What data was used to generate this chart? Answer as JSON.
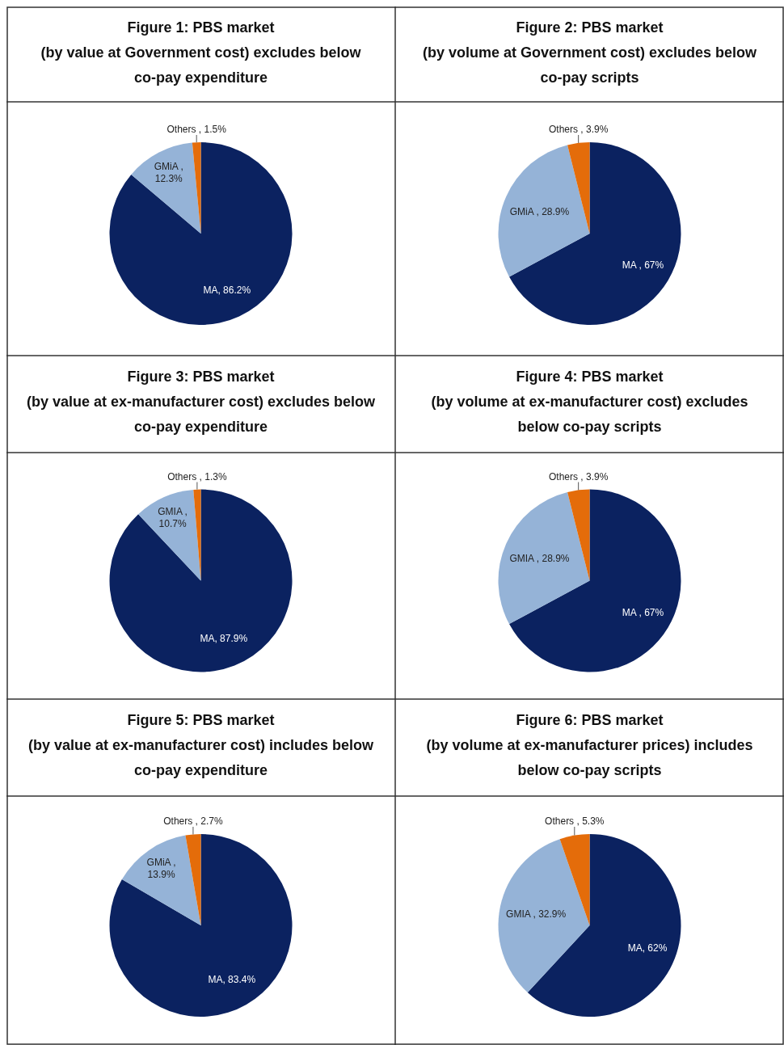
{
  "chart_data": [
    {
      "type": "pie",
      "title": "Figure 1: PBS market",
      "subtitle": "(by value at Government cost) excludes below co-pay expenditure",
      "categories": [
        "MA",
        "GMiA",
        "Others"
      ],
      "values": [
        86.2,
        12.3,
        1.5
      ],
      "colors": [
        "#0b2260",
        "#95b3d7",
        "#e46c0a"
      ],
      "value_labels": [
        ", 86.2%",
        " ,\n12.3%",
        " , 1.5%"
      ]
    },
    {
      "type": "pie",
      "title": "Figure 2: PBS market",
      "subtitle": "(by volume at Government cost) excludes below co-pay scripts",
      "categories": [
        "MA",
        "GMiA",
        "Others"
      ],
      "values": [
        67,
        28.9,
        3.9
      ],
      "colors": [
        "#0b2260",
        "#95b3d7",
        "#e46c0a"
      ],
      "value_labels": [
        " , 67%",
        " , 28.9%",
        " , 3.9%"
      ]
    },
    {
      "type": "pie",
      "title": "Figure 3: PBS market",
      "subtitle": "(by value at ex-manufacturer cost) excludes below co-pay expenditure",
      "categories": [
        "MA",
        "GMIA",
        "Others"
      ],
      "values": [
        87.9,
        10.7,
        1.3
      ],
      "colors": [
        "#0b2260",
        "#95b3d7",
        "#e46c0a"
      ],
      "value_labels": [
        ", 87.9%",
        " ,\n10.7%",
        " , 1.3%"
      ]
    },
    {
      "type": "pie",
      "title": "Figure 4: PBS market",
      "subtitle": "(by volume at ex-manufacturer cost) excludes below co-pay scripts",
      "categories": [
        "MA",
        "GMIA",
        "Others"
      ],
      "values": [
        67,
        28.9,
        3.9
      ],
      "colors": [
        "#0b2260",
        "#95b3d7",
        "#e46c0a"
      ],
      "value_labels": [
        " , 67%",
        " , 28.9%",
        " , 3.9%"
      ]
    },
    {
      "type": "pie",
      "title": "Figure 5: PBS market",
      "subtitle": "(by value at ex-manufacturer cost) includes below co-pay expenditure",
      "categories": [
        "MA",
        "GMiA",
        "Others"
      ],
      "values": [
        83.4,
        13.9,
        2.7
      ],
      "colors": [
        "#0b2260",
        "#95b3d7",
        "#e46c0a"
      ],
      "value_labels": [
        ", 83.4%",
        " ,\n13.9%",
        " , 2.7%"
      ]
    },
    {
      "type": "pie",
      "title": "Figure 6: PBS market",
      "subtitle": "(by volume at ex-manufacturer prices) includes below co-pay scripts",
      "categories": [
        "MA",
        "GMIA",
        "Others"
      ],
      "values": [
        62,
        32.9,
        5.3
      ],
      "colors": [
        "#0b2260",
        "#95b3d7",
        "#e46c0a"
      ],
      "value_labels": [
        ", 62%",
        " , 32.9%",
        " , 5.3%"
      ]
    }
  ]
}
